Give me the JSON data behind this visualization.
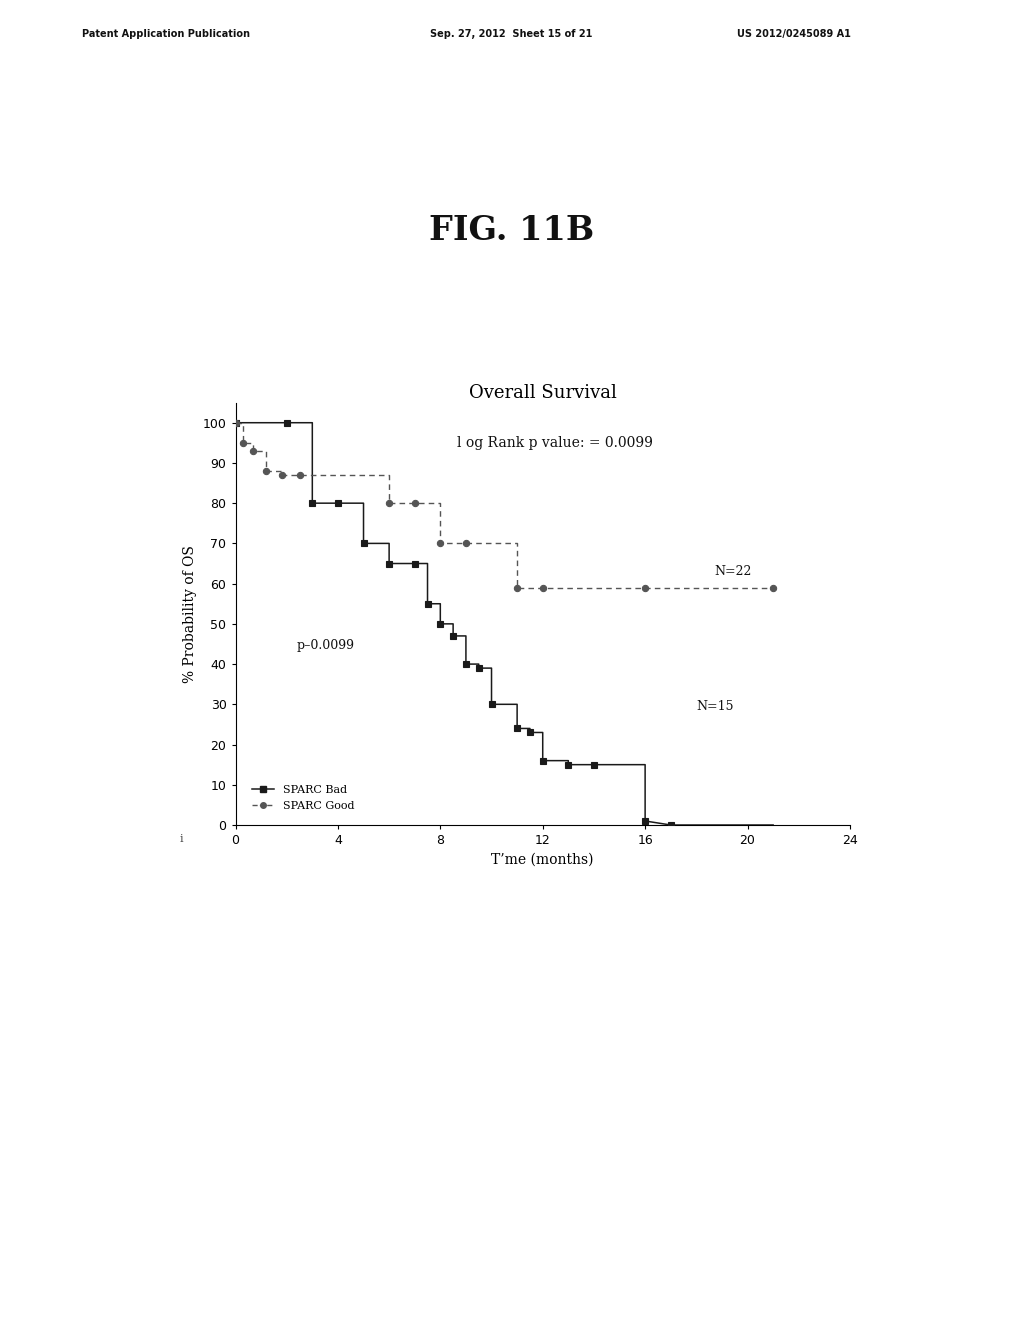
{
  "fig_label": "FIG. 11B",
  "patent_header_left": "Patent Application Publication",
  "patent_header_mid": "Sep. 27, 2012  Sheet 15 of 21",
  "patent_header_right": "US 2012/0245089 A1",
  "chart_title": "Overall Survival",
  "subtitle": "l og Rank p value: = 0.0099",
  "xlabel": "T’me (months)",
  "ylabel": "% Probability of OS",
  "p_annotation": "p–0.0099",
  "n_bad_annotation": "N=15",
  "n_good_annotation": "N=22",
  "xlim": [
    0,
    24
  ],
  "ylim": [
    0,
    105
  ],
  "xticks": [
    0,
    4,
    8,
    12,
    16,
    20,
    24
  ],
  "yticks": [
    0,
    10,
    20,
    30,
    40,
    50,
    60,
    70,
    80,
    90,
    100
  ],
  "sparc_bad_x": [
    0,
    2,
    2,
    3,
    3,
    4,
    4,
    5,
    5,
    6,
    6,
    7,
    7,
    7.5,
    7.5,
    8,
    8,
    8.5,
    8.5,
    9,
    9,
    9.5,
    9.5,
    10,
    10,
    11,
    11,
    11.5,
    11.5,
    12,
    12,
    13,
    13,
    14,
    14,
    16,
    16,
    17,
    21
  ],
  "sparc_bad_y": [
    100,
    100,
    100,
    100,
    80,
    80,
    80,
    80,
    70,
    70,
    65,
    65,
    65,
    65,
    55,
    55,
    50,
    50,
    47,
    47,
    40,
    40,
    39,
    39,
    30,
    30,
    24,
    24,
    23,
    23,
    16,
    16,
    15,
    15,
    15,
    15,
    1,
    0,
    0
  ],
  "sparc_good_x": [
    0,
    0.3,
    0.3,
    0.7,
    0.7,
    1.2,
    1.2,
    1.8,
    1.8,
    2.5,
    2.5,
    6,
    6,
    7,
    7,
    8,
    8,
    9,
    9,
    11,
    11,
    12,
    12,
    21
  ],
  "sparc_good_y": [
    100,
    100,
    95,
    95,
    93,
    93,
    88,
    88,
    87,
    87,
    87,
    87,
    80,
    80,
    80,
    80,
    70,
    70,
    70,
    70,
    59,
    59,
    59,
    59
  ],
  "sparc_bad_marker_x": [
    0,
    2,
    3,
    4,
    5,
    6,
    7,
    7.5,
    8,
    8.5,
    9,
    9.5,
    10,
    11,
    11.5,
    12,
    13,
    14,
    16,
    17
  ],
  "sparc_bad_marker_y": [
    100,
    100,
    80,
    80,
    70,
    65,
    65,
    55,
    50,
    47,
    40,
    39,
    30,
    24,
    23,
    16,
    15,
    15,
    1,
    0
  ],
  "sparc_good_marker_x": [
    0,
    0.3,
    0.7,
    1.2,
    1.8,
    2.5,
    6,
    7,
    8,
    9,
    11,
    12,
    16,
    21
  ],
  "sparc_good_marker_y": [
    100,
    95,
    93,
    88,
    87,
    87,
    80,
    80,
    70,
    70,
    59,
    59,
    59,
    59
  ],
  "sparc_bad_color": "#1a1a1a",
  "sparc_good_color": "#555555",
  "background_color": "#ffffff",
  "legend_bad_label": "SPARC Bad",
  "legend_good_label": "SPARC Good",
  "fig_label_fontsize": 24,
  "title_fontsize": 13,
  "subtitle_fontsize": 10,
  "axis_label_fontsize": 10,
  "tick_fontsize": 9,
  "annotation_fontsize": 9,
  "legend_fontsize": 8
}
